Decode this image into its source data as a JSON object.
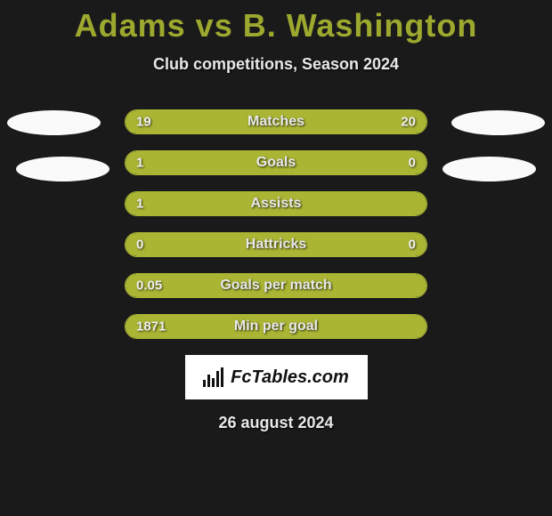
{
  "title": "Adams vs B. Washington",
  "subtitle": "Club competitions, Season 2024",
  "date": "26 august 2024",
  "logo_text": "FcTables.com",
  "colors": {
    "background": "#1a1a1a",
    "accent": "#aab534",
    "title_color": "#9ca82e",
    "text": "#e8e8e8",
    "logo_bg": "#ffffff",
    "logo_text": "#111111",
    "ellipse": "#fafafa"
  },
  "stats": [
    {
      "label": "Matches",
      "left_value": "19",
      "right_value": "20",
      "left_pct": 48.7,
      "right_pct": 51.3,
      "fill_mode": "split"
    },
    {
      "label": "Goals",
      "left_value": "1",
      "right_value": "0",
      "left_pct": 80,
      "right_pct": 20,
      "fill_mode": "split"
    },
    {
      "label": "Assists",
      "left_value": "1",
      "right_value": "",
      "left_pct": 100,
      "right_pct": 0,
      "fill_mode": "full"
    },
    {
      "label": "Hattricks",
      "left_value": "0",
      "right_value": "0",
      "left_pct": 50,
      "right_pct": 50,
      "fill_mode": "split"
    },
    {
      "label": "Goals per match",
      "left_value": "0.05",
      "right_value": "",
      "left_pct": 100,
      "right_pct": 0,
      "fill_mode": "full"
    },
    {
      "label": "Min per goal",
      "left_value": "1871",
      "right_value": "",
      "left_pct": 100,
      "right_pct": 0,
      "fill_mode": "full"
    }
  ]
}
